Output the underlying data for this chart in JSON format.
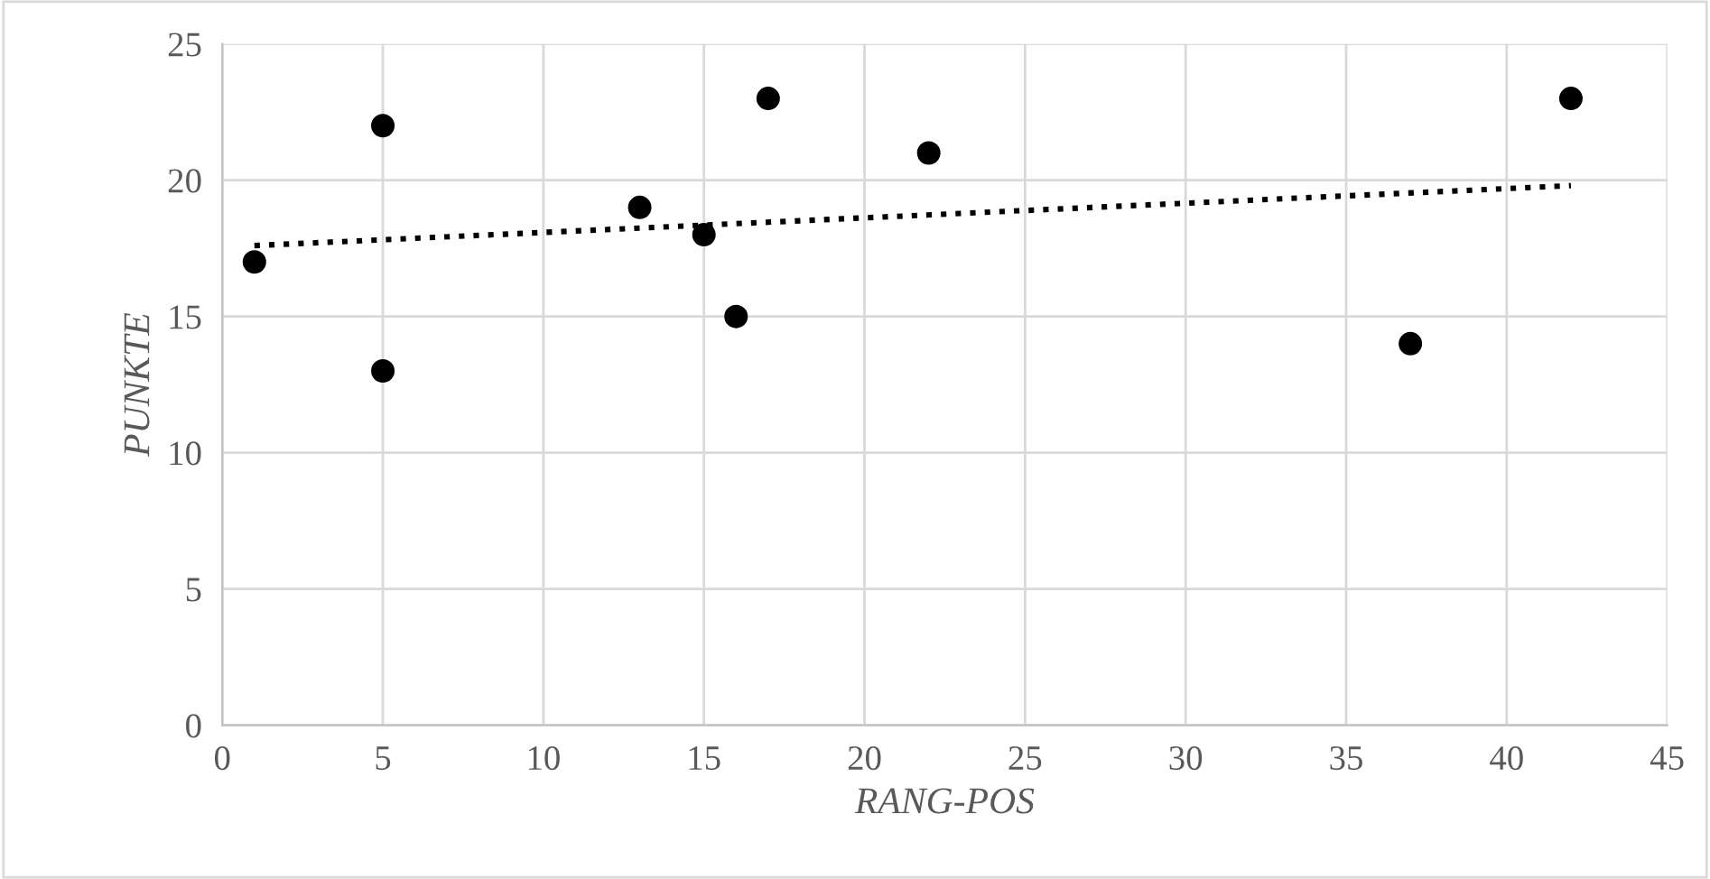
{
  "chart_data": {
    "type": "scatter",
    "xlabel": "RANG-POS",
    "ylabel": "PUNKTE",
    "series": [
      {
        "color": "#000000",
        "marker": "circle",
        "x": [
          1,
          5,
          5,
          13,
          15,
          16,
          17,
          22,
          37,
          42
        ],
        "values": [
          17,
          22,
          13,
          19,
          18,
          15,
          23,
          21,
          14,
          23
        ]
      },
      {
        "type": "line",
        "color": "#000000",
        "marker": "none",
        "line_style": "dotted",
        "x": [
          1,
          42
        ],
        "values": [
          17.6,
          19.8
        ]
      }
    ],
    "xlim": [
      0,
      45
    ],
    "xticks": [
      0,
      5,
      10,
      15,
      20,
      25,
      30,
      35,
      40,
      45
    ],
    "ylim": [
      0,
      25
    ],
    "yticks": [
      0,
      5,
      10,
      15,
      20,
      25
    ],
    "grid": true
  }
}
